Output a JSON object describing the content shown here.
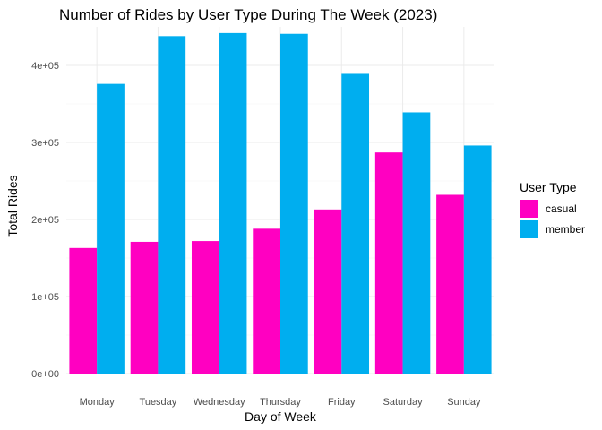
{
  "chart_data": {
    "type": "bar",
    "title": "Number of Rides by User Type During The Week (2023)",
    "xlabel": "Day of Week",
    "ylabel": "Total Rides",
    "categories": [
      "Monday",
      "Tuesday",
      "Wednesday",
      "Thursday",
      "Friday",
      "Saturday",
      "Sunday"
    ],
    "series": [
      {
        "name": "casual",
        "color": "#ff00c1",
        "values": [
          163000,
          171000,
          172000,
          188000,
          213000,
          287000,
          232000
        ]
      },
      {
        "name": "member",
        "color": "#00aeef",
        "values": [
          376000,
          438000,
          442000,
          441000,
          389000,
          339000,
          296000
        ]
      }
    ],
    "ylim": [
      0,
      450000
    ],
    "y_ticks": [
      0,
      100000,
      200000,
      300000,
      400000
    ],
    "y_tick_labels": [
      "0e+00",
      "1e+05",
      "2e+05",
      "3e+05",
      "4e+05"
    ],
    "grid": true,
    "legend": {
      "title": "User Type",
      "position": "right"
    }
  }
}
